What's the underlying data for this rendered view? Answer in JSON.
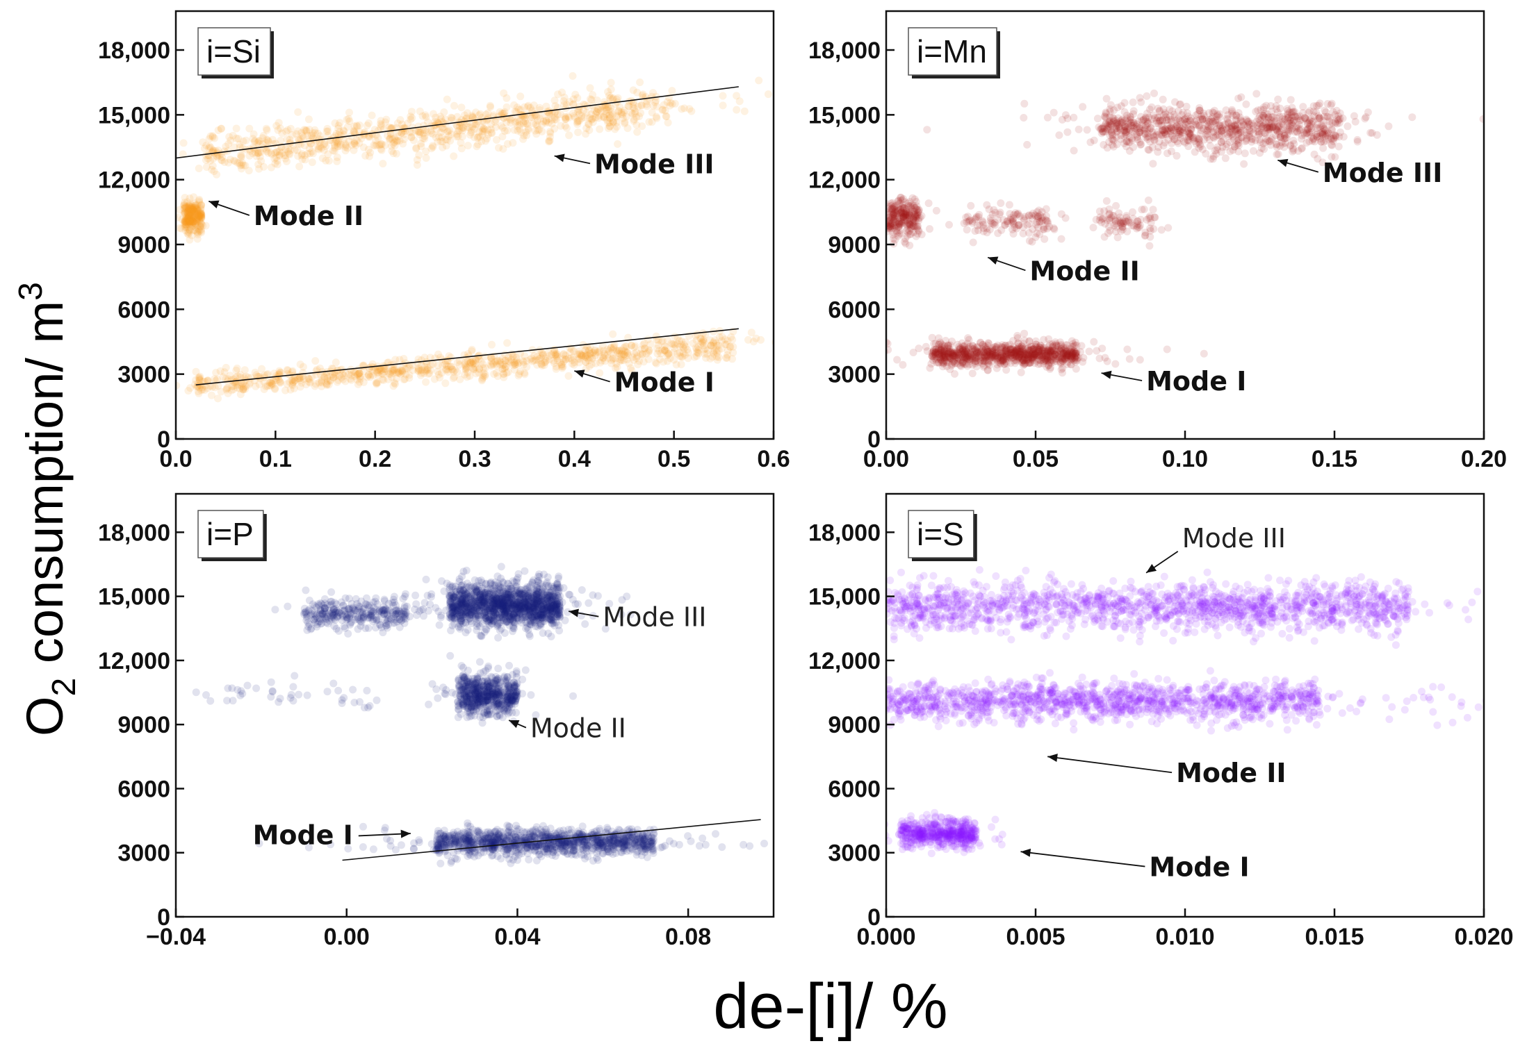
{
  "figure": {
    "ylabel_main": "O",
    "ylabel_sub": "2",
    "ylabel_rest": " consumption/ m",
    "ylabel_sup": "3",
    "xlabel": "de-[i]/ %"
  },
  "chart_data": [
    {
      "id": "si",
      "type": "scatter",
      "panel_label": "i=Si",
      "color": "#f59a1e",
      "xlim": [
        0.0,
        0.6
      ],
      "ylim": [
        0,
        19800
      ],
      "xticks": [
        0.0,
        0.1,
        0.2,
        0.3,
        0.4,
        0.5,
        0.6
      ],
      "xtick_labels": [
        "0.0",
        "0.1",
        "0.2",
        "0.3",
        "0.4",
        "0.5",
        "0.6"
      ],
      "yticks": [
        0,
        3000,
        6000,
        9000,
        12000,
        15000,
        18000
      ],
      "ytick_labels": [
        "0",
        "3000",
        "6000",
        "9000",
        "12,000",
        "15,000",
        "18,000"
      ],
      "clusters": [
        {
          "name": "Mode I",
          "x_range": [
            0.02,
            0.56
          ],
          "y_center": 3400,
          "y_spread": 500,
          "trend_slope": 3500,
          "density": 900
        },
        {
          "name": "Mode II",
          "x_range": [
            0.008,
            0.026
          ],
          "y_center": 10300,
          "y_spread": 650,
          "density": 250
        },
        {
          "name": "Mode III",
          "x_range": [
            0.03,
            0.5
          ],
          "y_center": 14300,
          "y_spread": 800,
          "trend_slope": 5000,
          "density": 900
        }
      ],
      "trendlines": [
        {
          "x": [
            0.02,
            0.565
          ],
          "y": [
            2500,
            5100
          ]
        },
        {
          "x": [
            0.0,
            0.565
          ],
          "y": [
            13000,
            16300
          ]
        }
      ],
      "annotations": [
        {
          "text": "Mode III",
          "style": "bold",
          "x_text": 0.42,
          "y_text": 12300,
          "x_point": 0.38,
          "y_point": 13100
        },
        {
          "text": "Mode II",
          "style": "bold",
          "x_text": 0.078,
          "y_text": 9900,
          "x_point": 0.033,
          "y_point": 11000
        },
        {
          "text": "Mode I",
          "style": "bold",
          "x_text": 0.44,
          "y_text": 2200,
          "x_point": 0.4,
          "y_point": 3150
        }
      ]
    },
    {
      "id": "mn",
      "type": "scatter",
      "panel_label": "i=Mn",
      "color": "#a5171b",
      "xlim": [
        0.0,
        0.2
      ],
      "ylim": [
        0,
        19800
      ],
      "xticks": [
        0.0,
        0.05,
        0.1,
        0.15,
        0.2
      ],
      "xtick_labels": [
        "0.00",
        "0.05",
        "0.10",
        "0.15",
        "0.20"
      ],
      "yticks": [
        0,
        3000,
        6000,
        9000,
        12000,
        15000,
        18000
      ],
      "ytick_labels": [
        "0",
        "3000",
        "6000",
        "9000",
        "12,000",
        "15,000",
        "18,000"
      ],
      "clusters": [
        {
          "name": "Mode I",
          "x_range": [
            0.015,
            0.064
          ],
          "y_center": 3900,
          "y_spread": 450,
          "density": 900
        },
        {
          "name": "Mode II a",
          "x_range": [
            0.0,
            0.011
          ],
          "y_center": 10200,
          "y_spread": 700,
          "density": 250
        },
        {
          "name": "Mode II b",
          "x_range": [
            0.026,
            0.055
          ],
          "y_center": 10000,
          "y_spread": 600,
          "density": 130
        },
        {
          "name": "Mode II c",
          "x_range": [
            0.07,
            0.09
          ],
          "y_center": 10100,
          "y_spread": 600,
          "density": 90
        },
        {
          "name": "Mode III",
          "x_range": [
            0.072,
            0.152
          ],
          "y_center": 14400,
          "y_spread": 900,
          "density": 900
        }
      ],
      "trendlines": [],
      "annotations": [
        {
          "text": "Mode III",
          "style": "bold",
          "x_text": 0.146,
          "y_text": 11900,
          "x_point": 0.131,
          "y_point": 12900
        },
        {
          "text": "Mode II",
          "style": "bold",
          "x_text": 0.048,
          "y_text": 7350,
          "x_point": 0.034,
          "y_point": 8400
        },
        {
          "text": "Mode I",
          "style": "bold",
          "x_text": 0.087,
          "y_text": 2250,
          "x_point": 0.072,
          "y_point": 3050
        }
      ]
    },
    {
      "id": "p",
      "type": "scatter",
      "panel_label": "i=P",
      "color": "#1a1f7a",
      "xlim": [
        -0.04,
        0.1
      ],
      "ylim": [
        0,
        19800
      ],
      "xticks": [
        -0.04,
        0.0,
        0.04,
        0.08
      ],
      "xtick_labels": [
        "−0.04",
        "0.00",
        "0.04",
        "0.08"
      ],
      "yticks": [
        0,
        3000,
        6000,
        9000,
        12000,
        15000,
        18000
      ],
      "ytick_labels": [
        "0",
        "3000",
        "6000",
        "9000",
        "12,000",
        "15,000",
        "18,000"
      ],
      "clusters": [
        {
          "name": "Mode I",
          "x_range": [
            0.021,
            0.072
          ],
          "y_center": 3500,
          "y_spread": 520,
          "density": 1100
        },
        {
          "name": "Mode II",
          "x_range": [
            0.026,
            0.04
          ],
          "y_center": 10400,
          "y_spread": 800,
          "density": 600
        },
        {
          "name": "Mode II sparse",
          "x_range": [
            -0.036,
            0.01
          ],
          "y_center": 10400,
          "y_spread": 600,
          "density": 40
        },
        {
          "name": "Mode III",
          "x_range": [
            0.024,
            0.05
          ],
          "y_center": 14600,
          "y_spread": 850,
          "density": 1400
        },
        {
          "name": "Mode III left",
          "x_range": [
            -0.01,
            0.014
          ],
          "y_center": 14200,
          "y_spread": 600,
          "density": 300
        }
      ],
      "trendlines": [
        {
          "x": [
            -0.001,
            0.097
          ],
          "y": [
            2650,
            4550
          ]
        }
      ],
      "annotations": [
        {
          "text": "Mode III",
          "style": "plain",
          "x_text": 0.06,
          "y_text": 13600,
          "x_point": 0.052,
          "y_point": 14300
        },
        {
          "text": "Mode II",
          "style": "plain",
          "x_text": 0.043,
          "y_text": 8400,
          "x_point": 0.038,
          "y_point": 9200
        },
        {
          "text": "Mode I",
          "style": "bold",
          "x_text": -0.022,
          "y_text": 3400,
          "x_point": 0.015,
          "y_point": 3900
        }
      ]
    },
    {
      "id": "s",
      "type": "scatter",
      "panel_label": "i=S",
      "color": "#8c1bff",
      "xlim": [
        0.0,
        0.02
      ],
      "ylim": [
        0,
        19800
      ],
      "xticks": [
        0.0,
        0.005,
        0.01,
        0.015,
        0.02
      ],
      "xtick_labels": [
        "0.000",
        "0.005",
        "0.010",
        "0.015",
        "0.020"
      ],
      "yticks": [
        0,
        3000,
        6000,
        9000,
        12000,
        15000,
        18000
      ],
      "ytick_labels": [
        "0",
        "3000",
        "6000",
        "9000",
        "12,000",
        "15,000",
        "18,000"
      ],
      "clusters": [
        {
          "name": "Mode I",
          "x_range": [
            0.0005,
            0.003
          ],
          "y_center": 3900,
          "y_spread": 550,
          "density": 500
        },
        {
          "name": "Mode II",
          "x_range": [
            0.0,
            0.0145
          ],
          "y_center": 10100,
          "y_spread": 750,
          "density": 1300
        },
        {
          "name": "Mode III",
          "x_range": [
            0.0,
            0.0175
          ],
          "y_center": 14500,
          "y_spread": 950,
          "density": 1500
        }
      ],
      "trendlines": [],
      "annotations": [
        {
          "text": "Mode III",
          "style": "plain",
          "x_text": 0.0099,
          "y_text": 17300,
          "x_point": 0.0087,
          "y_point": 16100
        },
        {
          "text": "Mode II",
          "style": "bold",
          "x_text": 0.0097,
          "y_text": 6300,
          "x_point": 0.0054,
          "y_point": 7500
        },
        {
          "text": "Mode I",
          "style": "bold",
          "x_text": 0.0088,
          "y_text": 1900,
          "x_point": 0.0045,
          "y_point": 3050
        }
      ]
    }
  ]
}
